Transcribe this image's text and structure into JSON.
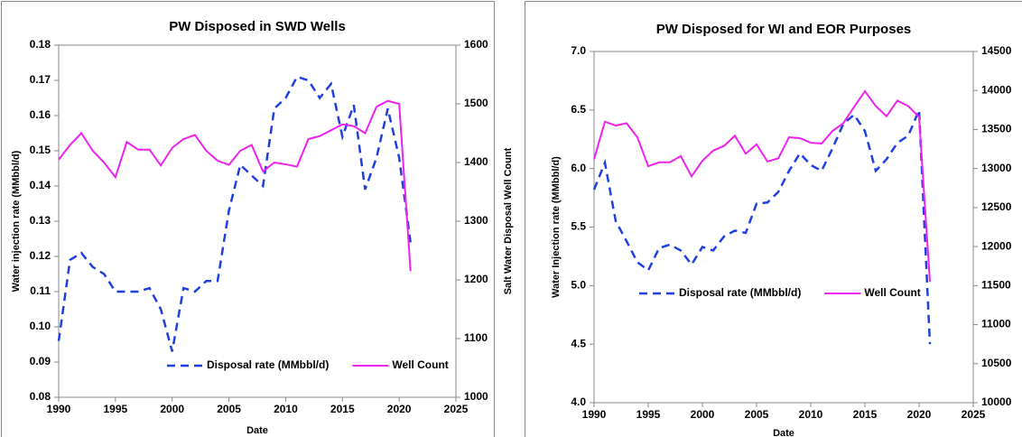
{
  "chart_data": [
    {
      "type": "line",
      "title": "PW Disposed in SWD Wells",
      "xlabel": "Date",
      "ylabel": "Water injection rate (MMbbl/d)",
      "y2label": "Salt Water Disposal Well Count",
      "x": [
        1990,
        1991,
        1992,
        1993,
        1994,
        1995,
        1996,
        1997,
        1998,
        1999,
        2000,
        2001,
        2002,
        2003,
        2004,
        2005,
        2006,
        2007,
        2008,
        2009,
        2010,
        2011,
        2012,
        2013,
        2014,
        2015,
        2016,
        2017,
        2018,
        2019,
        2020,
        2021
      ],
      "series": [
        {
          "name": "Disposal rate (MMbbl/d)",
          "color": "#1f3fe0",
          "linestyle": "dashed",
          "values": [
            0.096,
            0.119,
            0.121,
            0.117,
            0.115,
            0.11,
            0.11,
            0.11,
            0.111,
            0.105,
            0.093,
            0.111,
            0.11,
            0.113,
            0.113,
            0.133,
            0.146,
            0.143,
            0.14,
            0.162,
            0.165,
            0.171,
            0.17,
            0.165,
            0.169,
            0.154,
            0.163,
            0.139,
            0.148,
            0.162,
            0.148,
            0.124
          ]
        },
        {
          "name": "Well Count",
          "color": "#ee22ee",
          "linestyle": "solid",
          "axis": "y2",
          "values": [
            1405,
            1430,
            1450,
            1420,
            1400,
            1375,
            1435,
            1422,
            1422,
            1395,
            1425,
            1440,
            1447,
            1420,
            1403,
            1396,
            1420,
            1430,
            1385,
            1400,
            1397,
            1393,
            1440,
            1445,
            1455,
            1465,
            1462,
            1450,
            1495,
            1505,
            1500,
            1215
          ]
        }
      ],
      "xlim": [
        1990,
        2025
      ],
      "xticks": [
        1990,
        1995,
        2000,
        2005,
        2010,
        2015,
        2020,
        2025
      ],
      "ylim": [
        0.08,
        0.18
      ],
      "yticks": [
        0.08,
        0.09,
        {
          "value": 0.1,
          "label": "0.10"
        },
        0.11,
        0.12,
        0.13,
        0.14,
        0.15,
        0.16,
        0.17,
        0.18
      ],
      "y2lim": [
        1000,
        1600
      ],
      "y2ticks": [
        1000,
        1100,
        1200,
        1300,
        1400,
        1500,
        1600
      ],
      "legend": "lower right"
    },
    {
      "type": "line",
      "title": "PW Disposed for WI and EOR Purposes",
      "xlabel": "Date",
      "ylabel": "Water Injection rate (MMbbl/d)",
      "x": [
        1990,
        1991,
        1992,
        1993,
        1994,
        1995,
        1996,
        1997,
        1998,
        1999,
        2000,
        2001,
        2002,
        2003,
        2004,
        2005,
        2006,
        2007,
        2008,
        2009,
        2010,
        2011,
        2012,
        2013,
        2014,
        2015,
        2016,
        2017,
        2018,
        2019,
        2020,
        2021
      ],
      "series": [
        {
          "name": "Disposal rate (MMbbl/d)",
          "color": "#1f3fe0",
          "linestyle": "dashed",
          "values": [
            5.82,
            6.05,
            5.55,
            5.38,
            5.2,
            5.13,
            5.32,
            5.35,
            5.3,
            5.18,
            5.33,
            5.3,
            5.42,
            5.47,
            5.45,
            5.7,
            5.71,
            5.8,
            5.98,
            6.13,
            6.03,
            5.98,
            6.17,
            6.38,
            6.46,
            6.32,
            5.98,
            6.08,
            6.22,
            6.28,
            6.5,
            4.5
          ]
        },
        {
          "name": "Well Count",
          "color": "#ee22ee",
          "linestyle": "solid",
          "axis": "y2",
          "values": [
            13120,
            13600,
            13550,
            13580,
            13400,
            13030,
            13080,
            13080,
            13160,
            12900,
            13100,
            13230,
            13290,
            13420,
            13190,
            13310,
            13090,
            13130,
            13400,
            13390,
            13330,
            13320,
            13480,
            13580,
            13790,
            13990,
            13800,
            13670,
            13870,
            13800,
            13660,
            11550
          ]
        }
      ],
      "xlim": [
        1990,
        2025
      ],
      "xticks": [
        1990,
        1995,
        2000,
        2005,
        2010,
        2015,
        2020,
        2025
      ],
      "ylim": [
        4,
        7
      ],
      "yticks": [
        {
          "value": 4,
          "label": "4.0"
        },
        4.5,
        {
          "value": 5,
          "label": "5.0"
        },
        5.5,
        {
          "value": 6,
          "label": "6.0"
        },
        6.5,
        {
          "value": 7,
          "label": "7.0"
        }
      ],
      "y2lim": [
        10000,
        14500
      ],
      "y2ticks": [
        10000,
        10500,
        11000,
        11500,
        12000,
        12500,
        13000,
        13500,
        14000,
        14500
      ],
      "legend": "center right"
    }
  ]
}
